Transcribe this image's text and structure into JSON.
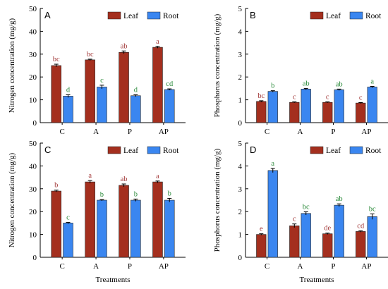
{
  "chart_data": [
    {
      "type": "bar",
      "panel_label": "A",
      "categories": [
        "C",
        "A",
        "P",
        "AP"
      ],
      "ylabel": "Nitrogen concentration (mg/g)",
      "xlabel": "",
      "ylim": [
        0,
        50
      ],
      "yticks": [
        0,
        10,
        20,
        30,
        40,
        50
      ],
      "series": [
        {
          "name": "Leaf",
          "values": [
            25.0,
            27.5,
            30.8,
            33.0
          ],
          "errors": [
            0.6,
            0.3,
            0.6,
            0.4
          ],
          "labels": [
            "bc",
            "bc",
            "ab",
            "a"
          ]
        },
        {
          "name": "Root",
          "values": [
            11.6,
            15.6,
            11.8,
            14.5
          ],
          "errors": [
            0.6,
            0.8,
            0.4,
            0.3
          ],
          "labels": [
            "d",
            "c",
            "d",
            "cd"
          ]
        }
      ],
      "legend": "top-right"
    },
    {
      "type": "bar",
      "panel_label": "B",
      "categories": [
        "C",
        "A",
        "P",
        "AP"
      ],
      "ylabel": "Phosphorus concentration (mg/g)",
      "xlabel": "",
      "ylim": [
        0,
        5
      ],
      "yticks": [
        0,
        1,
        2,
        3,
        4,
        5
      ],
      "series": [
        {
          "name": "Leaf",
          "values": [
            0.93,
            0.89,
            0.89,
            0.86
          ],
          "errors": [
            0.03,
            0.02,
            0.02,
            0.02
          ],
          "labels": [
            "bc",
            "c",
            "c",
            "c"
          ]
        },
        {
          "name": "Root",
          "values": [
            1.37,
            1.47,
            1.44,
            1.56
          ],
          "errors": [
            0.03,
            0.03,
            0.03,
            0.03
          ],
          "labels": [
            "b",
            "ab",
            "ab",
            "a"
          ]
        }
      ],
      "legend": "top-right"
    },
    {
      "type": "bar",
      "panel_label": "C",
      "categories": [
        "C",
        "A",
        "P",
        "AP"
      ],
      "ylabel": "Nitrogen concentration (mg/g)",
      "xlabel": "Treatments",
      "ylim": [
        0,
        50
      ],
      "yticks": [
        0,
        10,
        20,
        30,
        40,
        50
      ],
      "series": [
        {
          "name": "Leaf",
          "values": [
            29.0,
            33.0,
            31.5,
            33.0
          ],
          "errors": [
            0.4,
            0.6,
            0.6,
            0.4
          ],
          "labels": [
            "b",
            "a",
            "ab",
            "a"
          ]
        },
        {
          "name": "Root",
          "values": [
            15.0,
            25.0,
            25.0,
            25.0
          ],
          "errors": [
            0.3,
            0.3,
            0.5,
            0.8
          ],
          "labels": [
            "c",
            "b",
            "b",
            "b"
          ]
        }
      ],
      "legend": "top-right"
    },
    {
      "type": "bar",
      "panel_label": "D",
      "categories": [
        "C",
        "A",
        "P",
        "AP"
      ],
      "ylabel": "Phosphorus concentration (mg/g)",
      "xlabel": "Treatments",
      "ylim": [
        0,
        5
      ],
      "yticks": [
        0,
        1,
        2,
        3,
        4,
        5
      ],
      "series": [
        {
          "name": "Leaf",
          "values": [
            1.0,
            1.38,
            1.03,
            1.13
          ],
          "errors": [
            0.03,
            0.08,
            0.03,
            0.03
          ],
          "labels": [
            "e",
            "c",
            "de",
            "cd"
          ]
        },
        {
          "name": "Root",
          "values": [
            3.8,
            1.92,
            2.28,
            1.78
          ],
          "errors": [
            0.09,
            0.07,
            0.06,
            0.12
          ],
          "labels": [
            "a",
            "bc",
            "ab",
            "bc"
          ]
        }
      ],
      "legend": "top-right"
    }
  ],
  "colors": {
    "leaf_fill": "#a42f1e",
    "root_fill": "#3a86f0",
    "leaf_label": "#a33a3a",
    "root_label": "#2a8a3a",
    "axis": "#000000"
  }
}
